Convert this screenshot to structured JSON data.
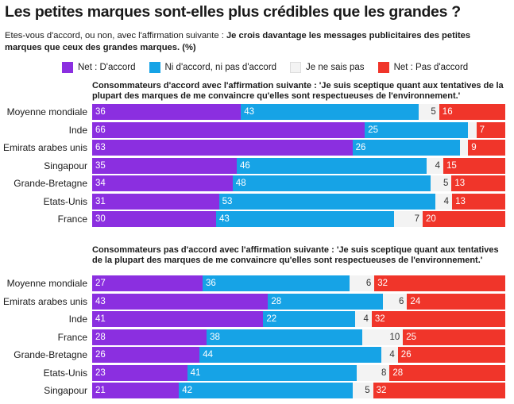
{
  "title": "Les petites marques sont-elles plus crédibles que les grandes ?",
  "subtitle": {
    "prefix": "Etes-vous d'accord, ou non, avec l'affirmation suivante : ",
    "bold": "Je crois davantage les messages publicitaires des petites marques que ceux des grandes marques. (%)"
  },
  "legend": [
    {
      "label": "Net : D'accord",
      "color": "#8b2fe0"
    },
    {
      "label": "Ni d'accord, ni pas d'accord",
      "color": "#16a3e6"
    },
    {
      "label": "Je ne sais pas",
      "color": "#f3f3f3"
    },
    {
      "label": "Net : Pas d'accord",
      "color": "#f0352a"
    }
  ],
  "chart_data": [
    {
      "type": "bar",
      "orientation": "horizontal",
      "stacked": true,
      "title": "Consommateurs d'accord avec l'affirmation suivante : 'Je suis sceptique quant aux tentatives de la plupart des marques de me convaincre qu'elles sont respectueuses de l'environnement.'",
      "categories": [
        "Moyenne mondiale",
        "Inde",
        "Emirats arabes unis",
        "Singapour",
        "Grande-Bretagne",
        "Etats-Unis",
        "France"
      ],
      "series": [
        {
          "name": "Net : D'accord",
          "values": [
            36,
            66,
            63,
            35,
            34,
            31,
            30
          ]
        },
        {
          "name": "Ni d'accord, ni pas d'accord",
          "values": [
            43,
            25,
            26,
            46,
            48,
            53,
            43
          ]
        },
        {
          "name": "Je ne sais pas",
          "values": [
            5,
            2,
            2,
            4,
            5,
            4,
            7
          ]
        },
        {
          "name": "Net : Pas d'accord",
          "values": [
            16,
            7,
            9,
            15,
            13,
            13,
            20
          ]
        }
      ],
      "series_labels_shown": [
        [
          "36",
          "66",
          "63",
          "35",
          "34",
          "31",
          "30"
        ],
        [
          "43",
          "25",
          "26",
          "46",
          "48",
          "53",
          "43"
        ],
        [
          "5",
          "",
          "",
          "4",
          "5",
          "4",
          "7"
        ],
        [
          "16",
          "7",
          "9",
          "15",
          "13",
          "13",
          "20"
        ]
      ]
    },
    {
      "type": "bar",
      "orientation": "horizontal",
      "stacked": true,
      "title": "Consommateurs pas d'accord avec l'affirmation suivante : 'Je suis sceptique quant aux tentatives de la plupart des marques de me convaincre qu'elles sont respectueuses de l'environnement.'",
      "categories": [
        "Moyenne mondiale",
        "Emirats arabes unis",
        "Inde",
        "France",
        "Grande-Bretagne",
        "Etats-Unis",
        "Singapour"
      ],
      "series": [
        {
          "name": "Net : D'accord",
          "values": [
            27,
            43,
            41,
            28,
            26,
            23,
            21
          ]
        },
        {
          "name": "Ni d'accord, ni pas d'accord",
          "values": [
            36,
            28,
            22,
            38,
            44,
            41,
            42
          ]
        },
        {
          "name": "Je ne sais pas",
          "values": [
            6,
            6,
            4,
            10,
            4,
            8,
            5
          ]
        },
        {
          "name": "Net : Pas d'accord",
          "values": [
            32,
            24,
            32,
            25,
            26,
            28,
            32
          ]
        }
      ],
      "series_labels_shown": [
        [
          "27",
          "43",
          "41",
          "28",
          "26",
          "23",
          "21"
        ],
        [
          "36",
          "28",
          "22",
          "38",
          "44",
          "41",
          "42"
        ],
        [
          "6",
          "6",
          "4",
          "10",
          "4",
          "8",
          "5"
        ],
        [
          "32",
          "24",
          "32",
          "25",
          "26",
          "28",
          "32"
        ]
      ]
    }
  ]
}
